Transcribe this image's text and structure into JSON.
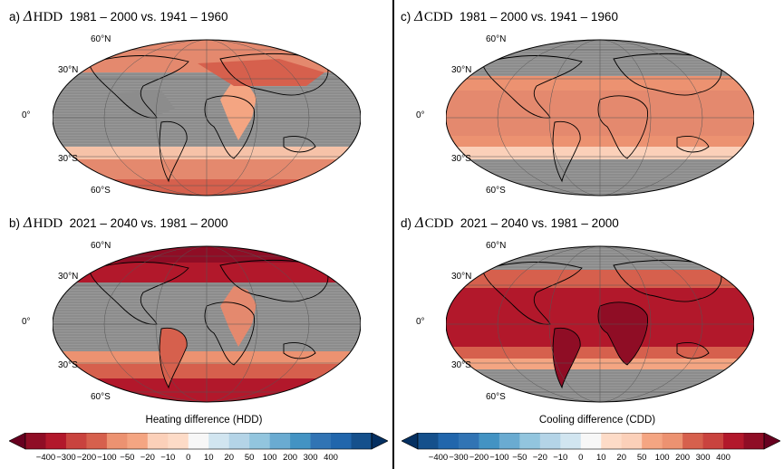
{
  "panels": [
    {
      "letter": "a)",
      "delta": "Δ",
      "metric": "HDD",
      "period": "1981 – 2000 vs. 1941 – 1960"
    },
    {
      "letter": "c)",
      "delta": "Δ",
      "metric": "CDD",
      "period": "1981 – 2000 vs. 1941 – 1960"
    },
    {
      "letter": "b)",
      "delta": "Δ",
      "metric": "HDD",
      "period": "2021 – 2040 vs. 1981 – 2000"
    },
    {
      "letter": "d)",
      "delta": "Δ",
      "metric": "CDD",
      "period": "2021 – 2040 vs. 1981 – 2000"
    }
  ],
  "lat_labels": [
    "60°N",
    "30°N",
    "0°",
    "30°S",
    "60°S"
  ],
  "colorbars": [
    {
      "label": "Heating difference (HDD)",
      "ticks": [
        "−400",
        "−300",
        "−200",
        "−100",
        "−50",
        "−20",
        "−10",
        "0",
        "10",
        "20",
        "50",
        "100",
        "200",
        "300",
        "400"
      ],
      "colors": [
        "#67001f",
        "#8f0d25",
        "#b2182b",
        "#c9433e",
        "#d6604d",
        "#ec9271",
        "#f4a582",
        "#fbd0b9",
        "#fddbc7",
        "#f7f7f7",
        "#d1e5f0",
        "#b4d4e7",
        "#92c5de",
        "#6aabd1",
        "#4393c3",
        "#3174b4",
        "#2166ac",
        "#15508c",
        "#053061"
      ]
    },
    {
      "label": "Cooling difference (CDD)",
      "ticks": [
        "−400",
        "−300",
        "−200",
        "−100",
        "−50",
        "−20",
        "−10",
        "0",
        "10",
        "20",
        "50",
        "100",
        "200",
        "300",
        "400"
      ],
      "colors": [
        "#053061",
        "#15508c",
        "#2166ac",
        "#3174b4",
        "#4393c3",
        "#6aabd1",
        "#92c5de",
        "#b4d4e7",
        "#d1e5f0",
        "#f7f7f7",
        "#fddbc7",
        "#fbd0b9",
        "#f4a582",
        "#ec9271",
        "#d6604d",
        "#c9433e",
        "#b2182b",
        "#8f0d25",
        "#67001f"
      ]
    }
  ],
  "colors": {
    "masked": "#8c8c8c",
    "land_outline": "#000000"
  }
}
